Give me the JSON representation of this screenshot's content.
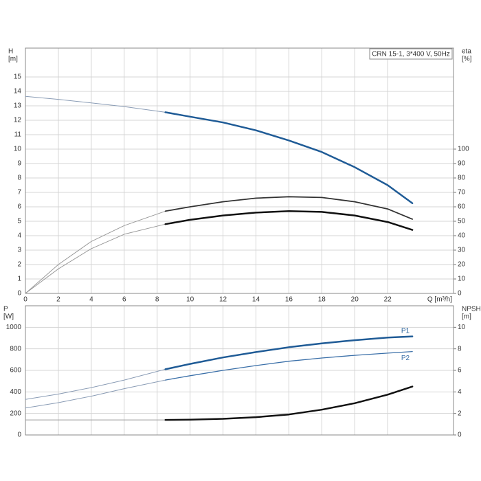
{
  "chart_data": [
    {
      "type": "line",
      "annotation": "CRN 15-1, 3*400 V, 50Hz",
      "ylabel": [
        "H",
        "[m]"
      ],
      "y2label": [
        "eta",
        "[%]"
      ],
      "xlabel": "Q [m³/h]",
      "x": [
        0,
        2,
        4,
        6,
        8.5,
        10,
        12,
        14,
        16,
        18,
        20,
        22,
        23.5
      ],
      "xlim": [
        0,
        26
      ],
      "xticks": [
        0,
        2,
        4,
        6,
        8,
        10,
        12,
        14,
        16,
        18,
        20,
        22
      ],
      "ylim": [
        0,
        17
      ],
      "yticks": [
        0,
        1,
        2,
        3,
        4,
        5,
        6,
        7,
        8,
        9,
        10,
        11,
        12,
        13,
        14,
        15
      ],
      "y2lim": [
        0,
        170
      ],
      "y2ticks": [
        0,
        10,
        20,
        30,
        40,
        50,
        60,
        70,
        80,
        90,
        100
      ],
      "grid": true,
      "series": [
        {
          "color": "#8a9cb5",
          "line_width": 1,
          "values": [
            13.65,
            13.45,
            13.2,
            12.95,
            12.55,
            null,
            null,
            null,
            null,
            null,
            null,
            null,
            null
          ]
        },
        {
          "color": "#1f5b96",
          "line_width": 2.5,
          "values": [
            null,
            null,
            null,
            null,
            12.55,
            12.25,
            11.85,
            11.3,
            10.6,
            9.8,
            8.75,
            7.5,
            6.25
          ]
        },
        {
          "color": "#9a9a9a",
          "line_width": 1,
          "axis": "y2",
          "values": [
            0,
            20,
            36,
            47,
            57,
            null,
            null,
            null,
            null,
            null,
            null,
            null,
            null
          ]
        },
        {
          "color": "#333333",
          "line_width": 1.8,
          "axis": "y2",
          "values": [
            null,
            null,
            null,
            null,
            57,
            60,
            63.5,
            66,
            67,
            66.5,
            63.5,
            58.5,
            51.5
          ]
        },
        {
          "color": "#9a9a9a",
          "line_width": 1,
          "axis": "y2",
          "values": [
            0,
            17,
            31,
            41,
            48,
            null,
            null,
            null,
            null,
            null,
            null,
            null,
            null
          ]
        },
        {
          "color": "#111111",
          "line_width": 2.5,
          "axis": "y2",
          "values": [
            null,
            null,
            null,
            null,
            48,
            51,
            54,
            56,
            57,
            56.5,
            54,
            49.5,
            44
          ]
        }
      ]
    },
    {
      "type": "line",
      "ylabel": [
        "P",
        "[W]"
      ],
      "y2label": [
        "NPSH",
        "[m]"
      ],
      "x": [
        0,
        2,
        4,
        6,
        8.5,
        10,
        12,
        14,
        16,
        18,
        20,
        22,
        23.5
      ],
      "xlim": [
        0,
        26
      ],
      "ylim": [
        0,
        1200
      ],
      "yticks": [
        0,
        200,
        400,
        600,
        800,
        1000
      ],
      "y2lim": [
        0,
        12
      ],
      "y2ticks": [
        0,
        2,
        4,
        6,
        8,
        10
      ],
      "grid": true,
      "series": [
        {
          "color": "#8a9cb5",
          "line_width": 1,
          "values": [
            330,
            380,
            440,
            510,
            610,
            null,
            null,
            null,
            null,
            null,
            null,
            null,
            null
          ]
        },
        {
          "name": "P1",
          "color": "#1f5b96",
          "line_width": 2.5,
          "values": [
            null,
            null,
            null,
            null,
            610,
            660,
            720,
            770,
            815,
            850,
            880,
            905,
            915
          ]
        },
        {
          "color": "#8a9cb5",
          "line_width": 1,
          "values": [
            250,
            300,
            360,
            430,
            510,
            null,
            null,
            null,
            null,
            null,
            null,
            null,
            null
          ]
        },
        {
          "name": "P2",
          "color": "#3a6fa8",
          "line_width": 1.3,
          "values": [
            null,
            null,
            null,
            null,
            510,
            550,
            600,
            645,
            685,
            715,
            740,
            760,
            775
          ]
        },
        {
          "color": "#9a9a9a",
          "line_width": 1,
          "axis": "y2",
          "values": [
            1.4,
            1.4,
            1.4,
            1.4,
            1.4,
            null,
            null,
            null,
            null,
            null,
            null,
            null,
            null
          ]
        },
        {
          "color": "#111111",
          "line_width": 2.5,
          "axis": "y2",
          "values": [
            null,
            null,
            null,
            null,
            1.4,
            1.42,
            1.5,
            1.65,
            1.9,
            2.35,
            2.95,
            3.75,
            4.5
          ]
        }
      ]
    }
  ]
}
